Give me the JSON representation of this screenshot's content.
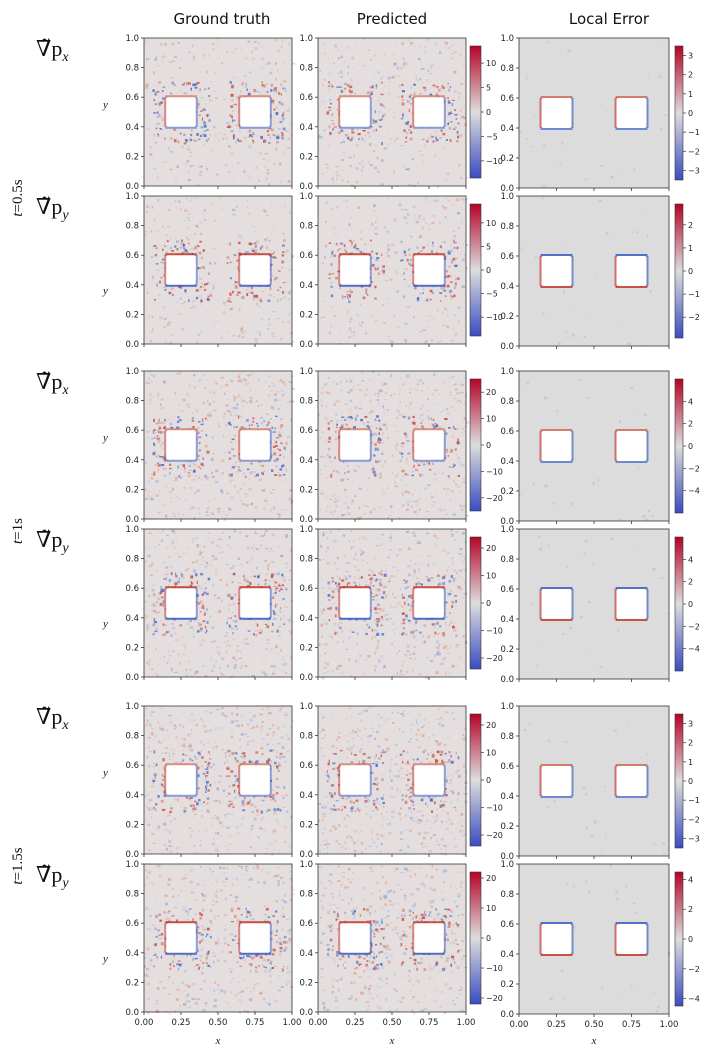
{
  "figure": {
    "column_titles": [
      "Ground truth",
      "Predicted",
      "Local Error"
    ],
    "x_label": "x",
    "y_label": "y",
    "colormap": {
      "low": "#3b4cc0",
      "mid": "#dddddd",
      "high": "#b40426"
    }
  },
  "chart_data": [
    {
      "type": "heatmap",
      "group": "t=0.5s",
      "row_label": "∇̃p",
      "subscript": "x",
      "time": "t=0.5s",
      "time_symbol": "t",
      "time_value": "=0.5s",
      "prediction_colorbar": {
        "range": [
          -13.5,
          13.5
        ],
        "ticks": [
          10,
          5,
          0,
          -5,
          -10
        ]
      },
      "error_colorbar": {
        "range": [
          -3.5,
          3.5
        ],
        "ticks": [
          3,
          2,
          1,
          0,
          -1,
          -2,
          -3
        ]
      },
      "x_ticks": [
        "0.00",
        "0.25",
        "0.50",
        "0.75",
        "1.00"
      ],
      "y_ticks": [
        "1.0",
        "0.8",
        "0.6",
        "0.4",
        "0.2",
        "0.0"
      ],
      "obstacles": [
        {
          "x": [
            0.15,
            0.35
          ],
          "y": [
            0.4,
            0.6
          ]
        },
        {
          "x": [
            0.65,
            0.85
          ],
          "y": [
            0.4,
            0.6
          ]
        }
      ]
    },
    {
      "type": "heatmap",
      "group": "t=0.5s",
      "row_label": "∇̃p",
      "subscript": "y",
      "time": "t=0.5s",
      "prediction_colorbar": {
        "range": [
          -14,
          14
        ],
        "ticks": [
          10,
          5,
          0,
          -5,
          -10
        ]
      },
      "error_colorbar": {
        "range": [
          -2.9,
          2.9
        ],
        "ticks": [
          2,
          1,
          0,
          -1,
          -2
        ]
      },
      "x_ticks": [
        "0.00",
        "0.25",
        "0.50",
        "0.75",
        "1.00"
      ],
      "y_ticks": [
        "1.0",
        "0.8",
        "0.6",
        "0.4",
        "0.2",
        "0.0"
      ],
      "obstacles": [
        {
          "x": [
            0.15,
            0.35
          ],
          "y": [
            0.4,
            0.6
          ]
        },
        {
          "x": [
            0.65,
            0.85
          ],
          "y": [
            0.4,
            0.6
          ]
        }
      ]
    },
    {
      "type": "heatmap",
      "group": "t=1s",
      "row_label": "∇̃p",
      "subscript": "x",
      "time": "t=1s",
      "time_symbol": "t",
      "time_value": "=1s",
      "prediction_colorbar": {
        "range": [
          -25,
          25
        ],
        "ticks": [
          20,
          10,
          0,
          -10,
          -20
        ]
      },
      "error_colorbar": {
        "range": [
          -6,
          6
        ],
        "ticks": [
          4,
          2,
          0,
          -2,
          -4
        ]
      },
      "x_ticks": [
        "0.00",
        "0.25",
        "0.50",
        "0.75",
        "1.00"
      ],
      "y_ticks": [
        "1.0",
        "0.8",
        "0.6",
        "0.4",
        "0.2",
        "0.0"
      ],
      "obstacles": [
        {
          "x": [
            0.15,
            0.35
          ],
          "y": [
            0.4,
            0.6
          ]
        },
        {
          "x": [
            0.65,
            0.85
          ],
          "y": [
            0.4,
            0.6
          ]
        }
      ]
    },
    {
      "type": "heatmap",
      "group": "t=1s",
      "row_label": "∇̃p",
      "subscript": "y",
      "time": "t=1s",
      "prediction_colorbar": {
        "range": [
          -24,
          24
        ],
        "ticks": [
          20,
          10,
          0,
          -10,
          -20
        ]
      },
      "error_colorbar": {
        "range": [
          -6,
          6
        ],
        "ticks": [
          4,
          2,
          0,
          -2,
          -4
        ]
      },
      "x_ticks": [
        "0.00",
        "0.25",
        "0.50",
        "0.75",
        "1.00"
      ],
      "y_ticks": [
        "1.0",
        "0.8",
        "0.6",
        "0.4",
        "0.2",
        "0.0"
      ],
      "obstacles": [
        {
          "x": [
            0.15,
            0.35
          ],
          "y": [
            0.4,
            0.6
          ]
        },
        {
          "x": [
            0.65,
            0.85
          ],
          "y": [
            0.4,
            0.6
          ]
        }
      ]
    },
    {
      "type": "heatmap",
      "group": "t=1.5s",
      "row_label": "∇̃p",
      "subscript": "x",
      "time": "t=1.5s",
      "time_symbol": "t",
      "time_value": "=1.5s",
      "prediction_colorbar": {
        "range": [
          -24,
          24
        ],
        "ticks": [
          20,
          10,
          0,
          -10,
          -20
        ]
      },
      "error_colorbar": {
        "range": [
          -3.5,
          3.5
        ],
        "ticks": [
          3,
          2,
          1,
          0,
          -1,
          -2,
          -3
        ]
      },
      "x_ticks": [
        "0.00",
        "0.25",
        "0.50",
        "0.75",
        "1.00"
      ],
      "y_ticks": [
        "1.0",
        "0.8",
        "0.6",
        "0.4",
        "0.2",
        "0.0"
      ],
      "obstacles": [
        {
          "x": [
            0.15,
            0.35
          ],
          "y": [
            0.4,
            0.6
          ]
        },
        {
          "x": [
            0.65,
            0.85
          ],
          "y": [
            0.4,
            0.6
          ]
        }
      ]
    },
    {
      "type": "heatmap",
      "group": "t=1.5s",
      "row_label": "∇̃p",
      "subscript": "y",
      "time": "t=1.5s",
      "prediction_colorbar": {
        "range": [
          -22,
          22
        ],
        "ticks": [
          20,
          10,
          0,
          -10,
          -20
        ]
      },
      "error_colorbar": {
        "range": [
          -4.5,
          4.5
        ],
        "ticks": [
          4,
          2,
          0,
          -2,
          -4
        ]
      },
      "x_ticks": [
        "0.00",
        "0.25",
        "0.50",
        "0.75",
        "1.00"
      ],
      "y_ticks": [
        "1.0",
        "0.8",
        "0.6",
        "0.4",
        "0.2",
        "0.0"
      ],
      "obstacles": [
        {
          "x": [
            0.15,
            0.35
          ],
          "y": [
            0.4,
            0.6
          ]
        },
        {
          "x": [
            0.65,
            0.85
          ],
          "y": [
            0.4,
            0.6
          ]
        }
      ]
    }
  ]
}
